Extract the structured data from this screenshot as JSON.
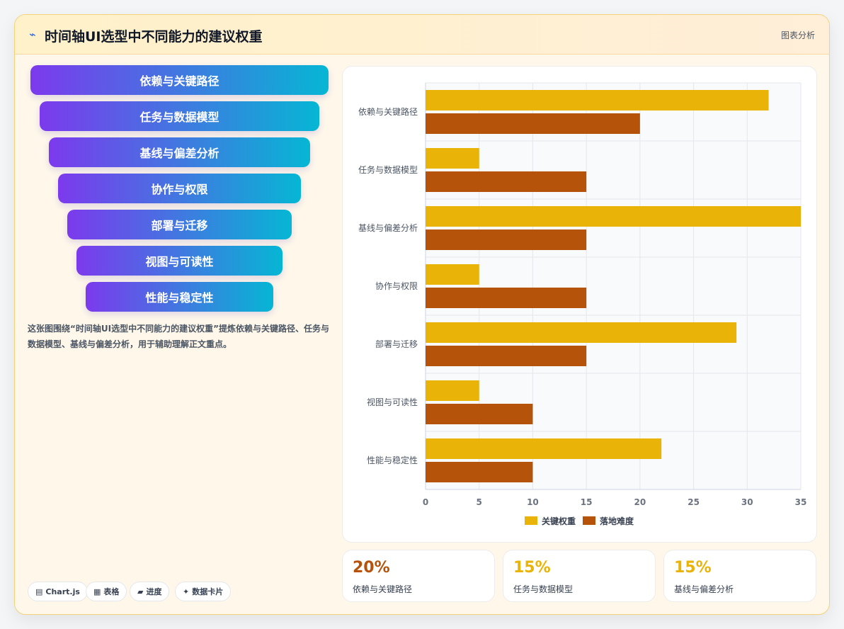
{
  "header": {
    "icon": "chart-line-icon",
    "title": "时间轴UI选型中不同能力的建议权重",
    "tag": "图表分析"
  },
  "funnel": [
    "依赖与关键路径",
    "任务与数据模型",
    "基线与偏差分析",
    "协作与权限",
    "部署与迁移",
    "视图与可读性",
    "性能与稳定性"
  ],
  "description": "这张图围绕“时间轴UI选型中不同能力的建议权重”提炼依赖与关键路径、任务与数据模型、基线与偏差分析，用于辅助理解正文重点。",
  "chips": [
    {
      "icon": "chart-icon",
      "label": "Chart.js"
    },
    {
      "icon": "table-icon",
      "label": "表格"
    },
    {
      "icon": "progress-icon",
      "label": "进度"
    },
    {
      "icon": "sparkle-icon",
      "label": "数据卡片"
    }
  ],
  "chart_data": {
    "type": "bar",
    "orientation": "horizontal",
    "categories": [
      "依赖与关键路径",
      "任务与数据模型",
      "基线与偏差分析",
      "协作与权限",
      "部署与迁移",
      "视图与可读性",
      "性能与稳定性"
    ],
    "series": [
      {
        "name": "关键权重",
        "color": "#eab308",
        "values": [
          32,
          5,
          35,
          5,
          29,
          5,
          22
        ]
      },
      {
        "name": "落地难度",
        "color": "#b45309",
        "values": [
          20,
          15,
          15,
          15,
          15,
          10,
          10
        ]
      }
    ],
    "xlim": [
      0,
      35
    ],
    "xticks": [
      0,
      5,
      10,
      15,
      20,
      25,
      30,
      35
    ],
    "grid": true,
    "legend": "bottom"
  },
  "stats": [
    {
      "value": "20%",
      "label": "依赖与关键路径",
      "color": "#b45309"
    },
    {
      "value": "15%",
      "label": "任务与数据模型",
      "color": "#eab308"
    },
    {
      "value": "15%",
      "label": "基线与偏差分析",
      "color": "#eab308"
    }
  ]
}
